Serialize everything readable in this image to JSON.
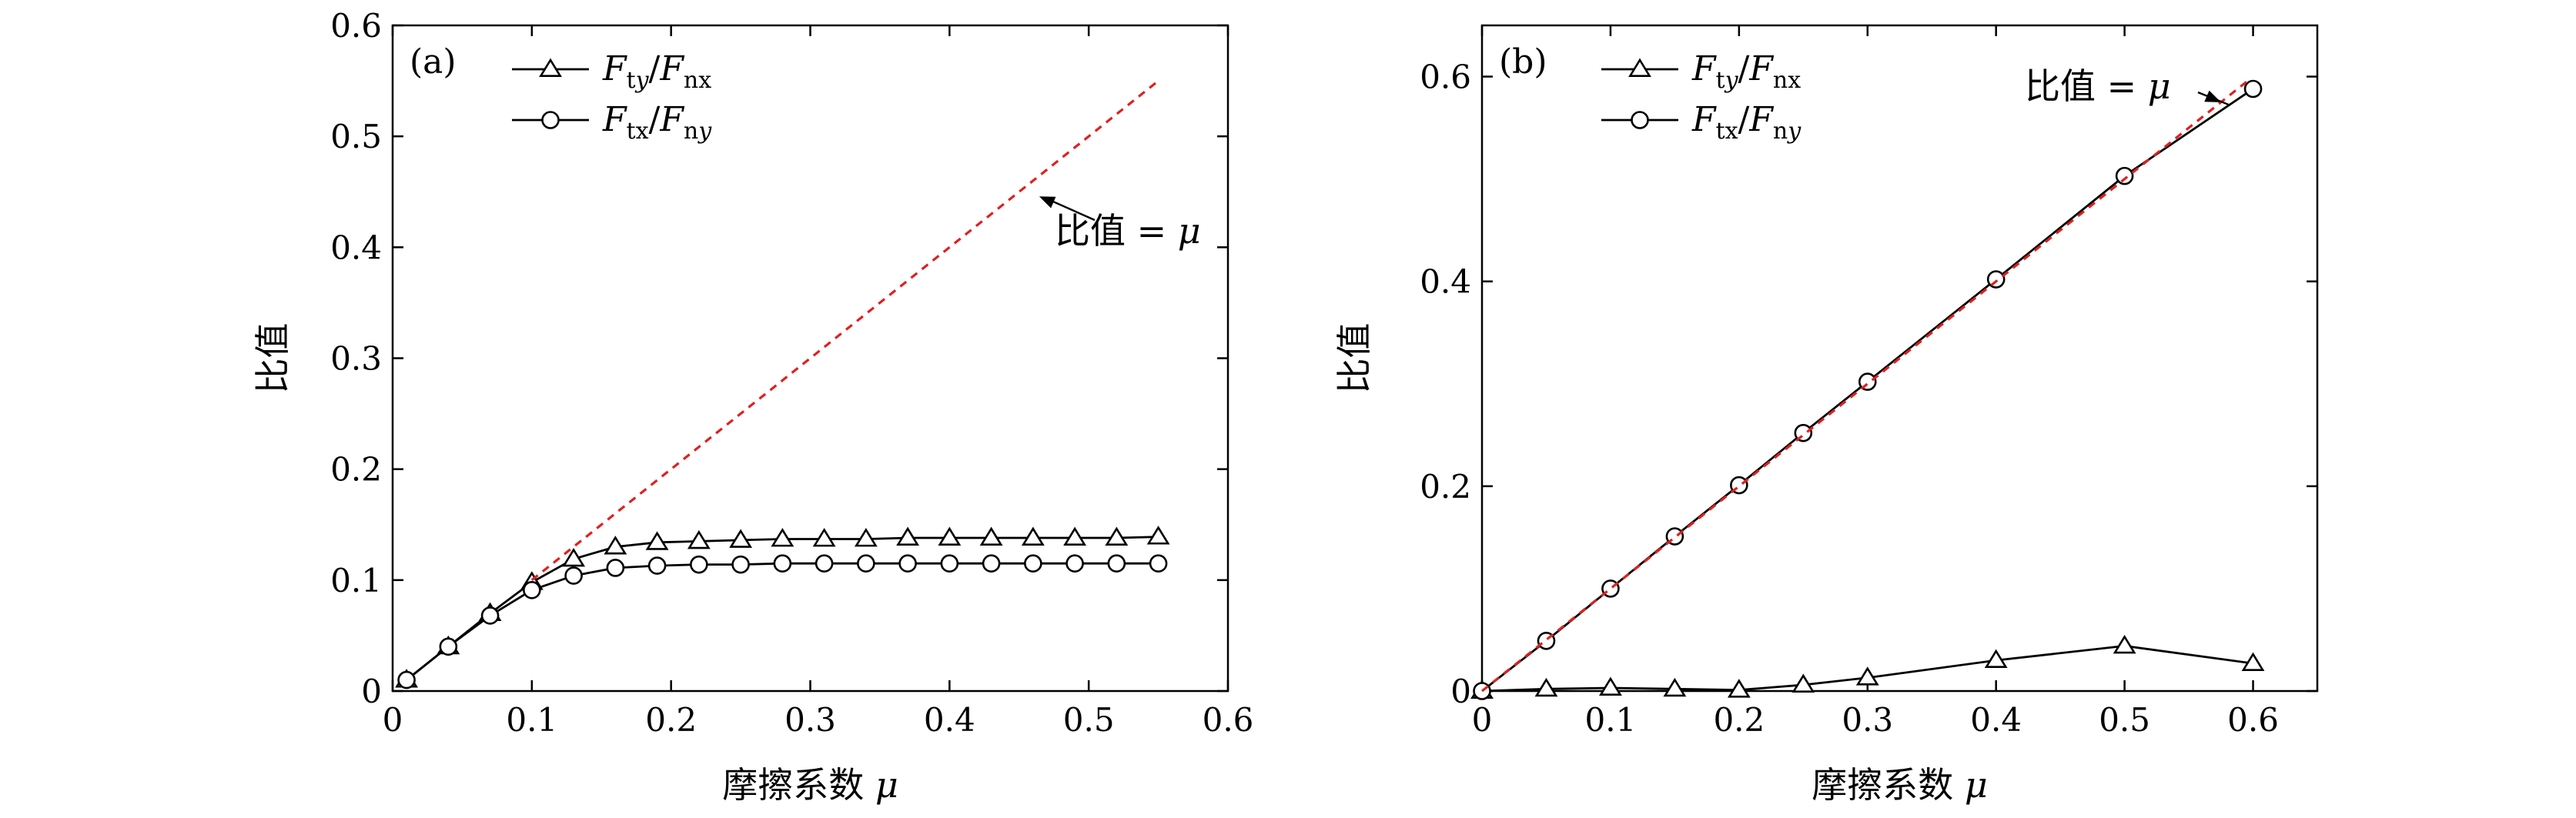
{
  "chart_data": [
    {
      "panel": "(a)",
      "type": "line",
      "xlabel": "摩擦系数 μ",
      "ylabel": "比值",
      "xlim": [
        0,
        0.6
      ],
      "ylim": [
        0,
        0.6
      ],
      "xticks": [
        "0",
        "0.1",
        "0.2",
        "0.3",
        "0.4",
        "0.5",
        "0.6"
      ],
      "yticks": [
        "0",
        "0.1",
        "0.2",
        "0.3",
        "0.4",
        "0.5",
        "0.6"
      ],
      "legend_position": "top-left",
      "series": [
        {
          "name": "Fty/Fnx",
          "marker": "triangle",
          "color": "#000000",
          "x": [
            0.01,
            0.04,
            0.07,
            0.1,
            0.13,
            0.16,
            0.19,
            0.22,
            0.25,
            0.28,
            0.31,
            0.34,
            0.37,
            0.4,
            0.43,
            0.46,
            0.49,
            0.52,
            0.55
          ],
          "y": [
            0.01,
            0.04,
            0.07,
            0.098,
            0.119,
            0.13,
            0.134,
            0.135,
            0.136,
            0.137,
            0.137,
            0.137,
            0.138,
            0.138,
            0.138,
            0.138,
            0.138,
            0.138,
            0.139
          ]
        },
        {
          "name": "Ftx/Fny",
          "marker": "circle",
          "color": "#000000",
          "x": [
            0.01,
            0.04,
            0.07,
            0.1,
            0.13,
            0.16,
            0.19,
            0.22,
            0.25,
            0.28,
            0.31,
            0.34,
            0.37,
            0.4,
            0.43,
            0.46,
            0.49,
            0.52,
            0.55
          ],
          "y": [
            0.01,
            0.04,
            0.068,
            0.091,
            0.104,
            0.111,
            0.113,
            0.114,
            0.114,
            0.115,
            0.115,
            0.115,
            0.115,
            0.115,
            0.115,
            0.115,
            0.115,
            0.115,
            0.115
          ]
        },
        {
          "name": "比值 = μ",
          "marker": "none",
          "style": "dashed",
          "color": "#e02020",
          "x": [
            0.1,
            0.55
          ],
          "y": [
            0.1,
            0.55
          ]
        }
      ],
      "annotation": {
        "text": "比值 = μ",
        "arrow_to": [
          0.46,
          0.45
        ]
      }
    },
    {
      "panel": "(b)",
      "type": "line",
      "xlabel": "摩擦系数 μ",
      "ylabel": "比值",
      "xlim": [
        0,
        0.65
      ],
      "ylim": [
        0,
        0.65
      ],
      "xticks": [
        "0",
        "0.1",
        "0.2",
        "0.3",
        "0.4",
        "0.5",
        "0.6"
      ],
      "yticks": [
        "0",
        "0.2",
        "0.4",
        "0.6"
      ],
      "legend_position": "top-left",
      "series": [
        {
          "name": "Fty/Fnx",
          "marker": "triangle",
          "color": "#000000",
          "x": [
            0,
            0.05,
            0.1,
            0.15,
            0.2,
            0.25,
            0.3,
            0.4,
            0.5,
            0.6
          ],
          "y": [
            0.0,
            0.002,
            0.003,
            0.002,
            0.001,
            0.006,
            0.013,
            0.03,
            0.044,
            0.027
          ]
        },
        {
          "name": "Ftx/Fny",
          "marker": "circle",
          "color": "#000000",
          "x": [
            0,
            0.05,
            0.1,
            0.15,
            0.2,
            0.25,
            0.3,
            0.4,
            0.5,
            0.6
          ],
          "y": [
            0.0,
            0.049,
            0.1,
            0.151,
            0.201,
            0.252,
            0.302,
            0.402,
            0.503,
            0.588
          ]
        },
        {
          "name": "比值 = μ",
          "marker": "none",
          "style": "dashed",
          "color": "#e02020",
          "x": [
            0,
            0.595
          ],
          "y": [
            0,
            0.595
          ]
        }
      ],
      "annotation": {
        "text": "比值 = μ",
        "arrow_to": [
          0.575,
          0.578
        ]
      }
    }
  ]
}
